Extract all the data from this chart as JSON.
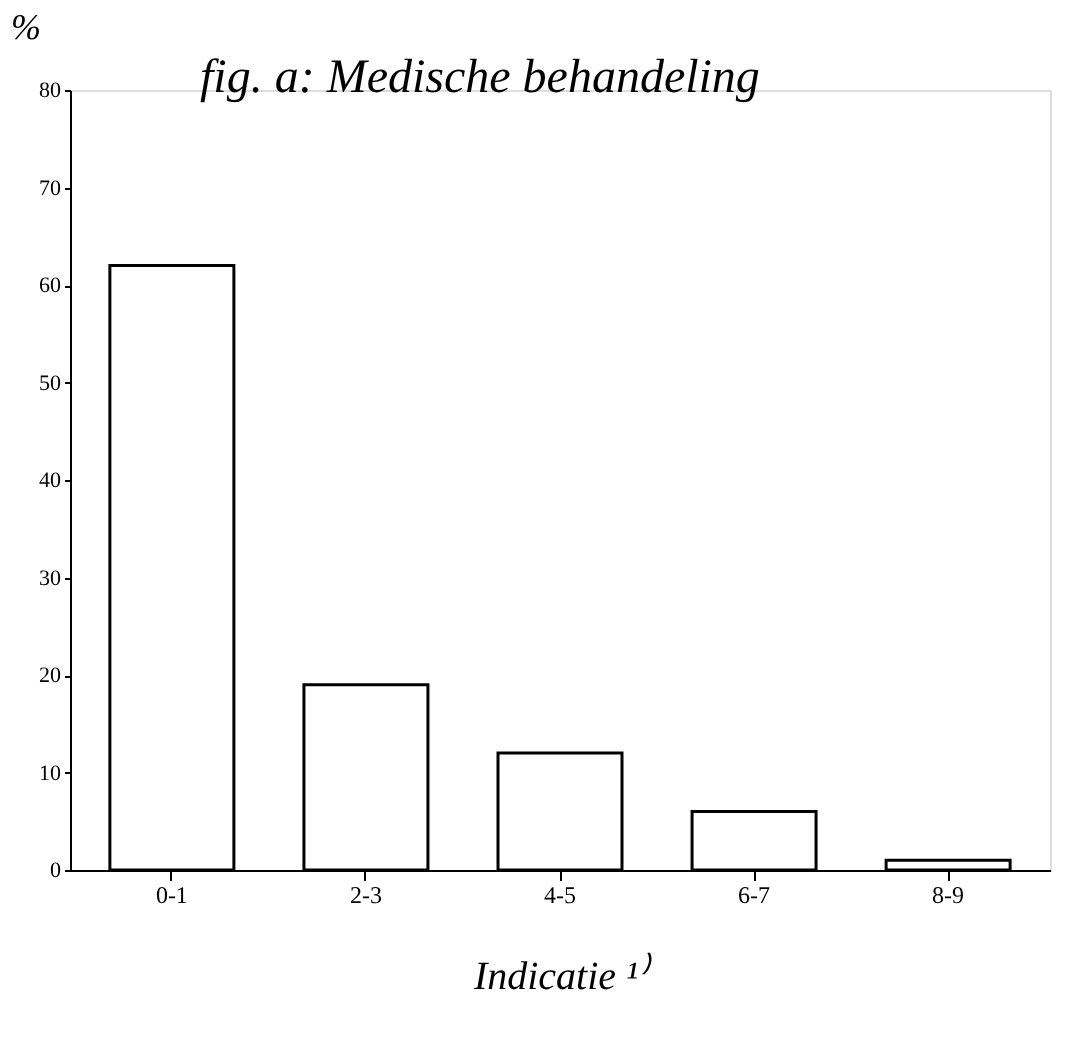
{
  "chart_data": {
    "type": "bar",
    "title": "fig. a: Medische behandeling",
    "ylabel": "%",
    "xlabel": "Indicatie ¹⁾",
    "categories": [
      "0-1",
      "2-3",
      "4-5",
      "6-7",
      "8-9"
    ],
    "values": [
      62,
      19,
      12,
      6,
      1
    ],
    "color": "#ffffff",
    "ylim": [
      0,
      80
    ],
    "yticks": [
      0,
      10,
      20,
      30,
      40,
      50,
      60,
      70,
      80
    ],
    "grid": false
  }
}
